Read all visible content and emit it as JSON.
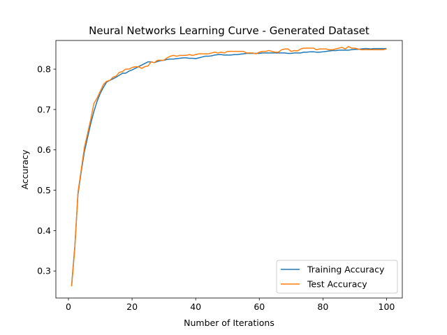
{
  "chart_data": {
    "type": "line",
    "title": "Neural Networks Learning Curve - Generated Dataset",
    "xlabel": "Number of Iterations",
    "ylabel": "Accuracy",
    "xlim": [
      -3.95,
      104.95
    ],
    "ylim": [
      0.233,
      0.871
    ],
    "xticks": [
      0,
      20,
      40,
      60,
      80,
      100
    ],
    "yticks": [
      0.3,
      0.4,
      0.5,
      0.6,
      0.7,
      0.8
    ],
    "grid": false,
    "legend_position": "lower right",
    "x": [
      1,
      2,
      3,
      4,
      5,
      6,
      7,
      8,
      9,
      10,
      11,
      12,
      13,
      14,
      15,
      16,
      17,
      18,
      19,
      20,
      21,
      22,
      23,
      24,
      25,
      26,
      27,
      28,
      29,
      30,
      31,
      32,
      33,
      34,
      35,
      36,
      37,
      38,
      39,
      40,
      41,
      42,
      43,
      44,
      45,
      46,
      47,
      48,
      49,
      50,
      51,
      52,
      53,
      54,
      55,
      56,
      57,
      58,
      59,
      60,
      61,
      62,
      63,
      64,
      65,
      66,
      67,
      68,
      69,
      70,
      71,
      72,
      73,
      74,
      75,
      76,
      77,
      78,
      79,
      80,
      81,
      82,
      83,
      84,
      85,
      86,
      87,
      88,
      89,
      90,
      91,
      92,
      93,
      94,
      95,
      96,
      97,
      98,
      99,
      100
    ],
    "series": [
      {
        "name": "Training Accuracy",
        "color": "#1f77b4",
        "values": [
          0.265,
          0.36,
          0.49,
          0.545,
          0.595,
          0.63,
          0.665,
          0.695,
          0.72,
          0.74,
          0.755,
          0.768,
          0.772,
          0.776,
          0.78,
          0.785,
          0.79,
          0.79,
          0.795,
          0.798,
          0.802,
          0.806,
          0.81,
          0.814,
          0.818,
          0.818,
          0.816,
          0.819,
          0.821,
          0.822,
          0.824,
          0.825,
          0.825,
          0.826,
          0.827,
          0.828,
          0.828,
          0.827,
          0.827,
          0.826,
          0.828,
          0.83,
          0.832,
          0.832,
          0.833,
          0.835,
          0.836,
          0.836,
          0.835,
          0.835,
          0.835,
          0.836,
          0.836,
          0.837,
          0.838,
          0.839,
          0.839,
          0.839,
          0.839,
          0.839,
          0.84,
          0.84,
          0.84,
          0.84,
          0.84,
          0.84,
          0.84,
          0.84,
          0.839,
          0.839,
          0.84,
          0.84,
          0.84,
          0.842,
          0.842,
          0.843,
          0.843,
          0.842,
          0.842,
          0.843,
          0.844,
          0.845,
          0.846,
          0.846,
          0.847,
          0.847,
          0.847,
          0.847,
          0.848,
          0.849,
          0.849,
          0.85,
          0.851,
          0.851,
          0.85,
          0.851,
          0.851,
          0.851,
          0.851,
          0.851
        ]
      },
      {
        "name": "Test Accuracy",
        "color": "#ff7f0e",
        "values": [
          0.262,
          0.355,
          0.495,
          0.55,
          0.605,
          0.64,
          0.675,
          0.715,
          0.728,
          0.745,
          0.762,
          0.77,
          0.772,
          0.78,
          0.783,
          0.792,
          0.794,
          0.8,
          0.8,
          0.804,
          0.806,
          0.806,
          0.802,
          0.806,
          0.808,
          0.818,
          0.816,
          0.822,
          0.822,
          0.822,
          0.828,
          0.832,
          0.834,
          0.832,
          0.834,
          0.834,
          0.834,
          0.836,
          0.834,
          0.836,
          0.838,
          0.838,
          0.838,
          0.838,
          0.84,
          0.842,
          0.84,
          0.842,
          0.84,
          0.844,
          0.844,
          0.844,
          0.844,
          0.844,
          0.844,
          0.84,
          0.84,
          0.84,
          0.838,
          0.842,
          0.844,
          0.844,
          0.846,
          0.844,
          0.842,
          0.842,
          0.848,
          0.85,
          0.85,
          0.844,
          0.846,
          0.845,
          0.85,
          0.852,
          0.852,
          0.852,
          0.852,
          0.848,
          0.85,
          0.85,
          0.85,
          0.848,
          0.848,
          0.85,
          0.852,
          0.854,
          0.85,
          0.856,
          0.852,
          0.852,
          0.85,
          0.848,
          0.848,
          0.848,
          0.848,
          0.848,
          0.848,
          0.848,
          0.848,
          0.85
        ]
      }
    ]
  }
}
